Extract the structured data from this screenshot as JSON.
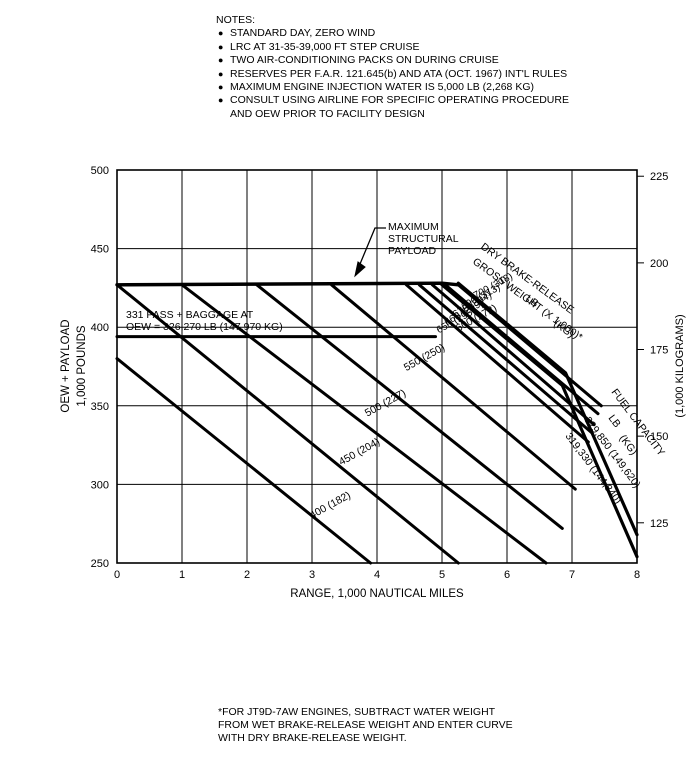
{
  "notes": {
    "title": "NOTES:",
    "items": [
      "STANDARD DAY, ZERO WIND",
      "LRC AT 31-35-39,000 FT STEP CRUISE",
      "TWO AIR-CONDITIONING PACKS ON DURING CRUISE",
      "RESERVES PER F.A.R. 121.645(b) AND ATA (OCT. 1967) INT'L RULES",
      "MAXIMUM ENGINE INJECTION WATER IS 5,000 LB (2,268 KG)",
      "CONSULT USING AIRLINE FOR SPECIFIC OPERATING PROCEDURE",
      "AND OEW PRIOR TO FACILITY DESIGN"
    ]
  },
  "footnote": [
    "*FOR JT9D-7AW ENGINES, SUBTRACT WATER WEIGHT",
    "FROM WET BRAKE-RELEASE WEIGHT AND ENTER CURVE",
    "WITH DRY BRAKE-RELEASE WEIGHT."
  ],
  "chart_data": {
    "type": "line",
    "xlabel": "RANGE, 1,000 NAUTICAL MILES",
    "ylabel": [
      "OEW + PAYLOAD",
      "1,000 POUNDS"
    ],
    "ylabel_right": "(1,000 KILOGRAMS)",
    "xlim": [
      0,
      8
    ],
    "ylim": [
      250,
      500
    ],
    "x_ticks": [
      "0",
      "1",
      "2",
      "3",
      "4",
      "5",
      "6",
      "7",
      "8"
    ],
    "y_ticks": [
      "250",
      "300",
      "350",
      "400",
      "450",
      "500"
    ],
    "y_ticks_right": [
      "125",
      "150",
      "175",
      "200",
      "225"
    ],
    "y_ticks_right_values": [
      125,
      150,
      175,
      200,
      225
    ],
    "grid": true,
    "annotations": {
      "max_payload": [
        "MAXIMUM",
        "STRUCTURAL",
        "PAYLOAD"
      ],
      "pass": [
        "331 PASS + BAGGAGE AT",
        "OEW = 326,270 LB (147,970 KG)"
      ],
      "brw_title": [
        "DRY BRAKE-RELEASE",
        "GROSS WEIGHT (X 1,000)*"
      ],
      "brw_units": [
        "LB",
        "(KG)"
      ],
      "fuel_title": [
        "FUEL CAPACITY",
        "LB",
        "(KG)"
      ],
      "fuel_values": [
        "329,850 (149,620)",
        "319,330 (144,840)"
      ]
    },
    "series": [
      {
        "label": "400",
        "kg": "(182)",
        "points": [
          [
            0,
            380
          ],
          [
            3.9,
            250
          ]
        ]
      },
      {
        "label": "450",
        "kg": "(204)",
        "points": [
          [
            0,
            427
          ],
          [
            5.25,
            250
          ]
        ]
      },
      {
        "label": "500",
        "kg": "(227)",
        "points": [
          [
            1.0,
            427
          ],
          [
            6.6,
            250
          ]
        ]
      },
      {
        "label": "550",
        "kg": "(250)",
        "points": [
          [
            2.15,
            427
          ],
          [
            6.85,
            272
          ]
        ]
      },
      {
        "label": "600",
        "kg": "(272)",
        "points": [
          [
            3.3,
            427
          ],
          [
            7.05,
            297
          ]
        ]
      },
      {
        "label": "650",
        "kg": "(295)",
        "points": [
          [
            4.45,
            427
          ],
          [
            7.25,
            327
          ]
        ]
      },
      {
        "label": "660",
        "kg": "(299)",
        "points": [
          [
            4.65,
            427
          ],
          [
            7.3,
            333
          ]
        ]
      },
      {
        "label": "670",
        "kg": "(304)",
        "points": [
          [
            4.85,
            427
          ],
          [
            7.34,
            338
          ]
        ]
      },
      {
        "label": "690",
        "kg": "(313)",
        "points": [
          [
            5.05,
            427
          ],
          [
            7.4,
            345
          ]
        ]
      },
      {
        "label": "700",
        "kg": "(318)",
        "points": [
          [
            5.25,
            427
          ],
          [
            7.45,
            350
          ]
        ]
      }
    ],
    "max_payload_line": [
      [
        0,
        427
      ],
      [
        5.0,
        428
      ],
      [
        5.25,
        427
      ]
    ],
    "pass_line": [
      [
        0,
        394
      ],
      [
        4.9,
        394
      ]
    ],
    "fuel_capacity_lines": [
      {
        "label": "329,850 (149,620)",
        "points": [
          [
            5.25,
            428
          ],
          [
            6.9,
            371
          ],
          [
            8.0,
            268
          ]
        ]
      },
      {
        "label": "319,330 (144,840)",
        "points": [
          [
            5.0,
            427
          ],
          [
            6.85,
            363
          ],
          [
            8.0,
            254
          ]
        ]
      }
    ]
  }
}
